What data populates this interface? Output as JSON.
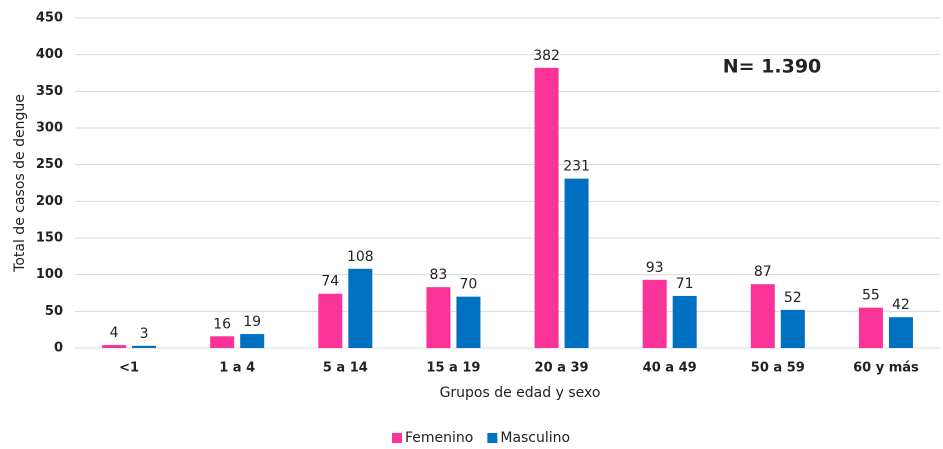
{
  "chart_data": {
    "type": "bar",
    "x_label": "Grupos de edad y sexo",
    "y_label": "Total de casos de dengue",
    "annotation": "N= 1.390",
    "categories": [
      "<1",
      "1 a 4",
      "5 a 14",
      "15 a 19",
      "20 a 39",
      "40 a 49",
      "50 a 59",
      "60 y más"
    ],
    "series": [
      {
        "name": "Femenino",
        "color": "#fa3399",
        "values": [
          4,
          16,
          74,
          83,
          382,
          93,
          87,
          55
        ]
      },
      {
        "name": "Masculino",
        "color": "#0070c0",
        "values": [
          3,
          19,
          108,
          70,
          231,
          71,
          52,
          42
        ]
      }
    ],
    "ylim": [
      0,
      450
    ],
    "yticks": [
      0,
      50,
      100,
      150,
      200,
      250,
      300,
      350,
      400,
      450
    ],
    "grid": true,
    "legend": "bottom"
  }
}
